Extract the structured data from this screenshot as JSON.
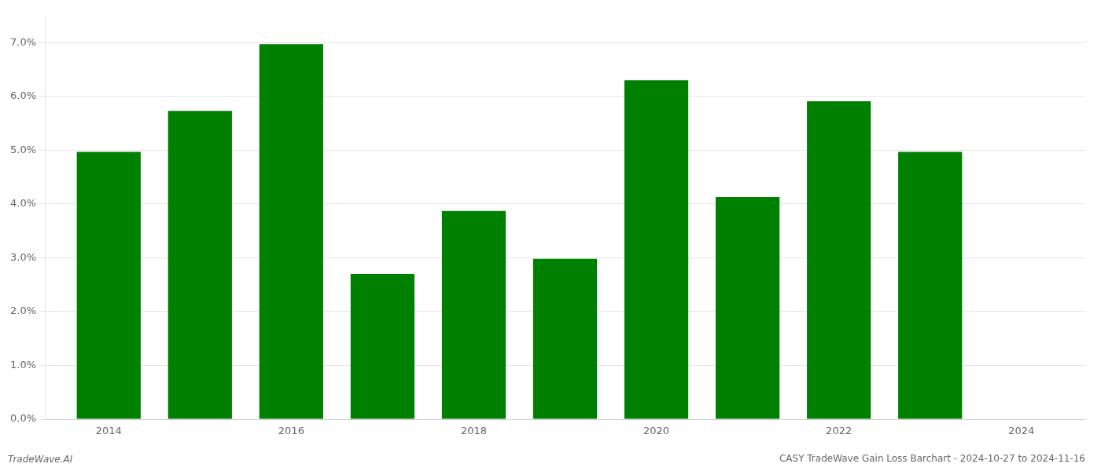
{
  "chart_data": {
    "type": "bar",
    "title": "CASY TradeWave Gain Loss Barchart - 2024-10-27 to 2024-11-16",
    "annotations": [
      "TradeWave.AI"
    ],
    "x": [
      2014,
      2015,
      2016,
      2017,
      2018,
      2019,
      2020,
      2021,
      2022,
      2023
    ],
    "values": [
      0.0497,
      0.0573,
      0.0697,
      0.027,
      0.0387,
      0.0298,
      0.063,
      0.0413,
      0.0591,
      0.0497
    ],
    "color": "#008000",
    "xlim": [
      2013.3,
      2024.7
    ],
    "xticks": [
      2014,
      2016,
      2018,
      2020,
      2022,
      2024
    ],
    "ylim": [
      0,
      0.075
    ],
    "yticks": [
      {
        "value": 0.0,
        "label": "0.0%"
      },
      {
        "value": 0.01,
        "label": "1.0%"
      },
      {
        "value": 0.02,
        "label": "2.0%"
      },
      {
        "value": 0.03,
        "label": "3.0%"
      },
      {
        "value": 0.04,
        "label": "4.0%"
      },
      {
        "value": 0.05,
        "label": "5.0%"
      },
      {
        "value": 0.06,
        "label": "6.0%"
      },
      {
        "value": 0.07,
        "label": "7.0%"
      }
    ],
    "grid": true
  }
}
